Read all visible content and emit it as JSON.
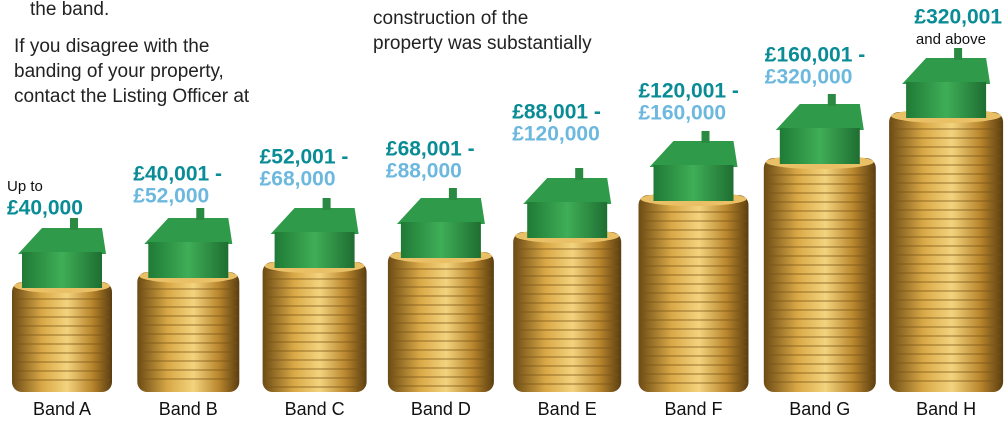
{
  "left_text": [
    "the band.",
    "If you disagree with the",
    "banding of your property,",
    "contact the Listing Officer at"
  ],
  "middle_text": [
    "construction of the",
    "property was substantially"
  ],
  "bands": [
    {
      "name": "Band A",
      "lines": [
        {
          "text": "Up to",
          "style": "small"
        },
        {
          "text": "£40,000",
          "style": "teal"
        }
      ]
    },
    {
      "name": "Band B",
      "lines": [
        {
          "text": "£40,001 -",
          "style": "teal"
        },
        {
          "text": "£52,000",
          "style": "blue"
        }
      ]
    },
    {
      "name": "Band C",
      "lines": [
        {
          "text": "£52,001 -",
          "style": "teal"
        },
        {
          "text": "£68,000",
          "style": "blue"
        }
      ]
    },
    {
      "name": "Band D",
      "lines": [
        {
          "text": "£68,001 -",
          "style": "teal"
        },
        {
          "text": "£88,000",
          "style": "blue"
        }
      ]
    },
    {
      "name": "Band E",
      "lines": [
        {
          "text": "£88,001 -",
          "style": "teal"
        },
        {
          "text": "£120,000",
          "style": "blue"
        }
      ]
    },
    {
      "name": "Band F",
      "lines": [
        {
          "text": "£120,001 -",
          "style": "teal"
        },
        {
          "text": "£160,000",
          "style": "blue"
        }
      ]
    },
    {
      "name": "Band G",
      "lines": [
        {
          "text": "£160,001 -",
          "style": "teal"
        },
        {
          "text": "£320,000",
          "style": "blue"
        }
      ]
    },
    {
      "name": "Band H",
      "lines": [
        {
          "text": "£320,001",
          "style": "teal"
        },
        {
          "text": "and above",
          "style": "small"
        }
      ]
    }
  ]
}
